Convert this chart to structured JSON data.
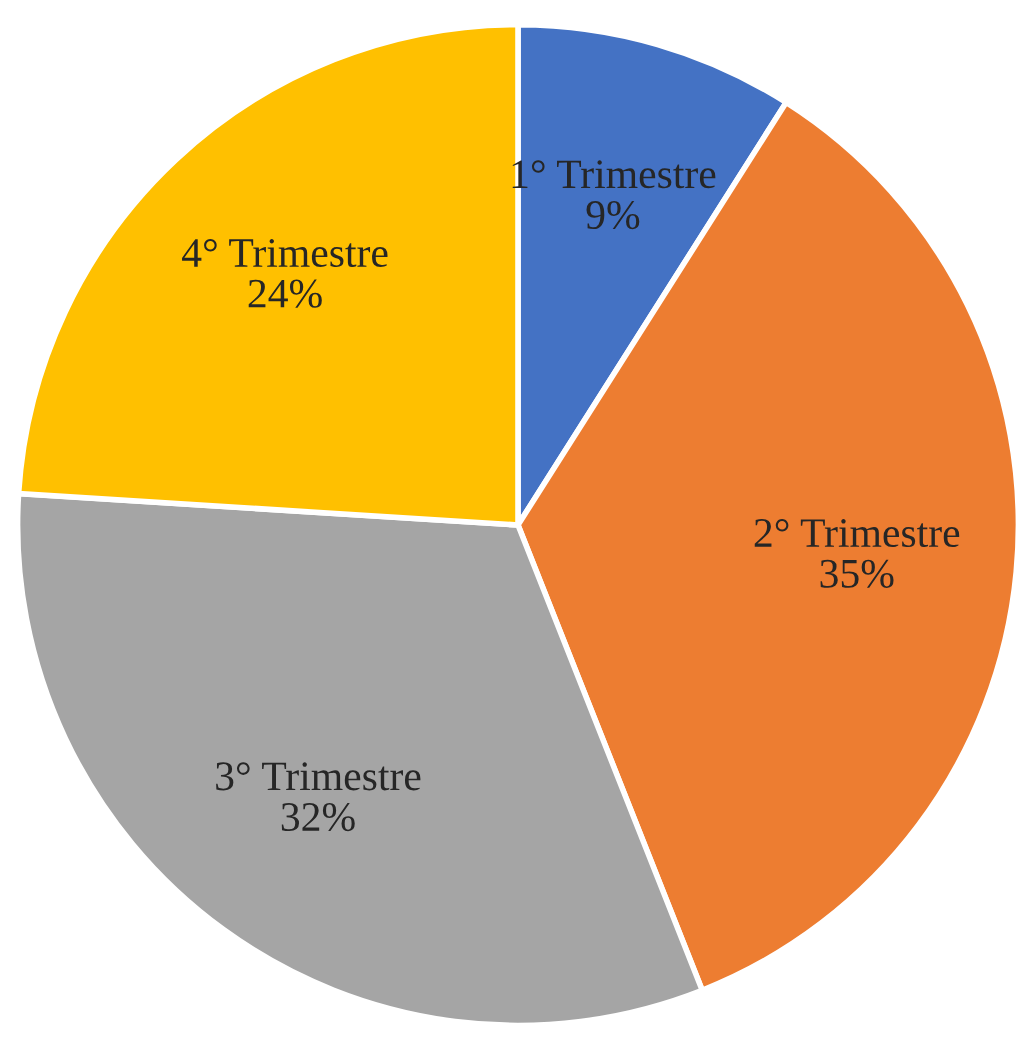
{
  "chart_data": {
    "type": "pie",
    "categories": [
      "1° Trimestre",
      "2° Trimestre",
      "3° Trimestre",
      "4° Trimestre"
    ],
    "values": [
      9,
      35,
      32,
      24
    ],
    "value_labels": [
      "9%",
      "35%",
      "32%",
      "24%"
    ],
    "colors": [
      "#4472c4",
      "#ed7d31",
      "#a5a5a5",
      "#ffc000"
    ]
  }
}
